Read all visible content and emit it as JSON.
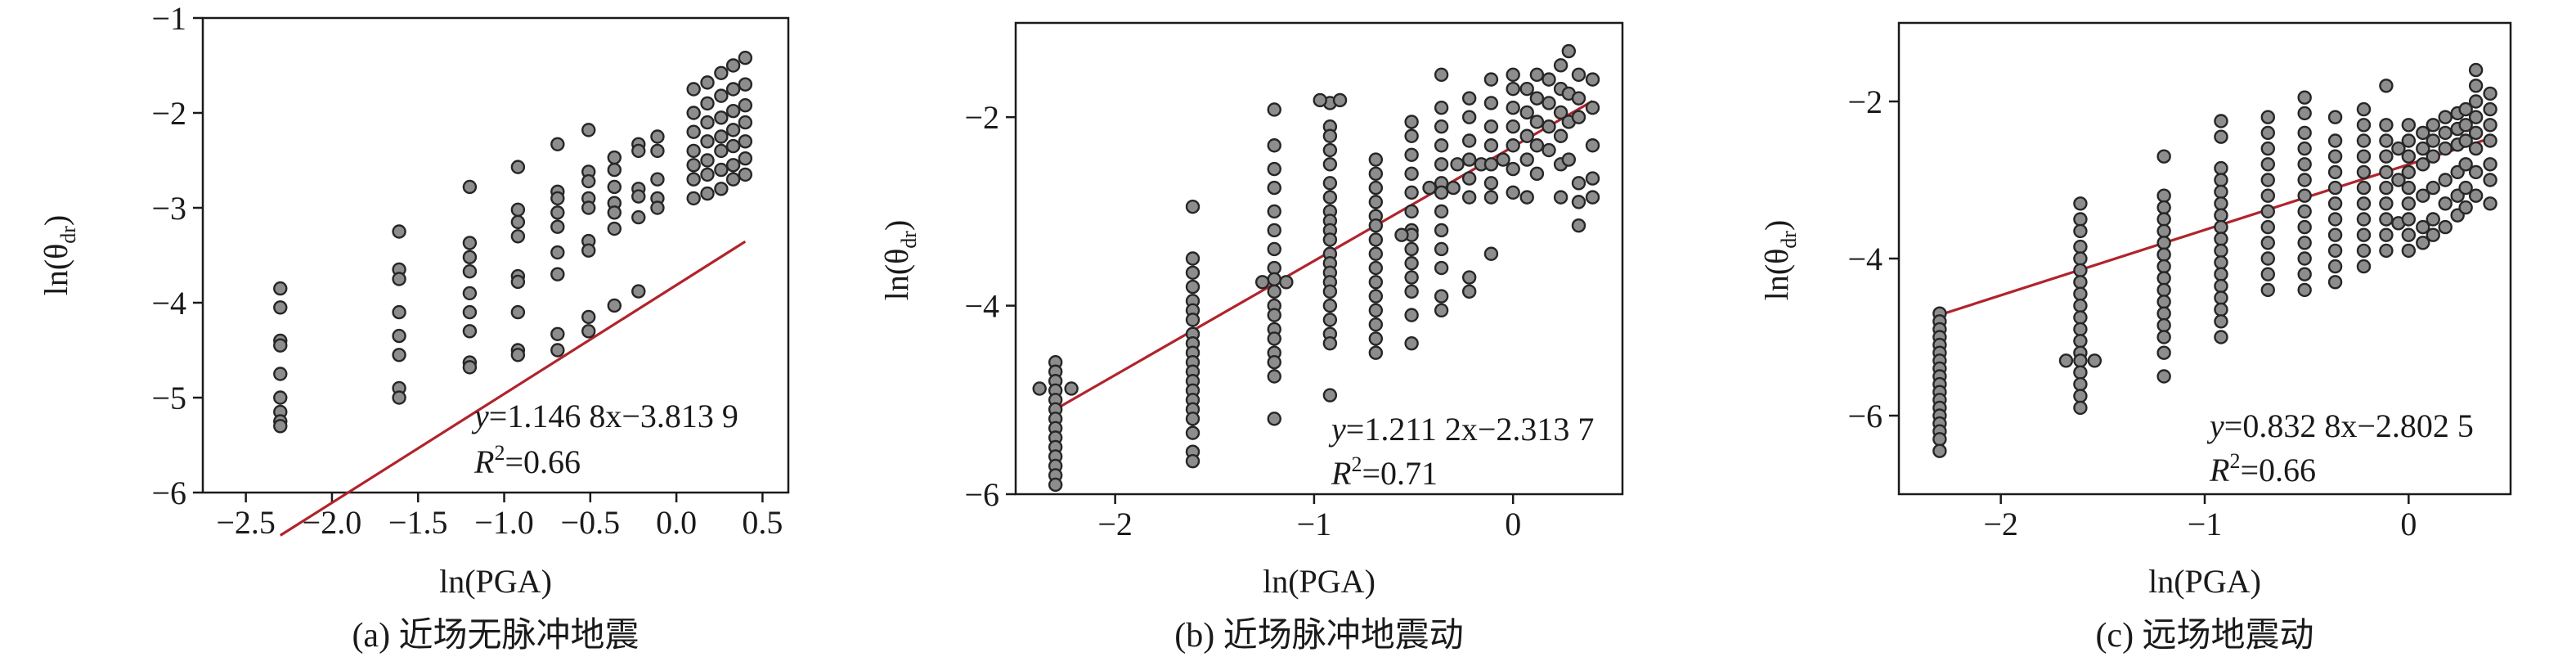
{
  "chart_data": [
    {
      "type": "scatter",
      "caption": "(a) 近场无脉冲地震",
      "xlabel": "ln(PGA)",
      "ylabel_main": "ln(θ",
      "ylabel_sub": "dr",
      "ylabel_close": ")",
      "xlim": [
        -2.75,
        0.65
      ],
      "ylim": [
        -6,
        -1
      ],
      "xticks": [
        -2.5,
        -2.0,
        -1.5,
        -1.0,
        -0.5,
        0.0,
        0.5
      ],
      "xtick_labels": [
        "−2.5",
        "−2.0",
        "−1.5",
        "−1.0",
        "−0.5",
        "0.0",
        "0.5"
      ],
      "yticks": [
        -6,
        -5,
        -4,
        -3,
        -2,
        -1
      ],
      "ytick_labels": [
        "−6",
        "−5",
        "−4",
        "−3",
        "−2",
        "−1"
      ],
      "equation": {
        "y": "y",
        "rest": "=1.146 8x−3.813 9"
      },
      "r2": {
        "r": "R",
        "sup": "2",
        "rest": "=0.66"
      },
      "fit": {
        "slope": 1.1468,
        "intercept": -3.8139,
        "x_range": [
          -2.3,
          0.4
        ]
      },
      "point_groups": [
        {
          "x": -2.3,
          "y": [
            -3.85,
            -4.05,
            -4.4,
            -4.45,
            -4.75,
            -5.0,
            -5.15,
            -5.25,
            -5.3
          ]
        },
        {
          "x": -1.61,
          "y": [
            -3.25,
            -3.65,
            -3.75,
            -4.1,
            -4.35,
            -4.55,
            -4.9,
            -5.0
          ]
        },
        {
          "x": -1.2,
          "y": [
            -2.78,
            -3.37,
            -3.52,
            -3.67,
            -3.9,
            -4.1,
            -4.3,
            -4.63,
            -4.68
          ]
        },
        {
          "x": -0.92,
          "y": [
            -2.57,
            -3.02,
            -3.15,
            -3.3,
            -3.72,
            -3.78,
            -4.1,
            -4.5,
            -4.55
          ]
        },
        {
          "x": -0.69,
          "y": [
            -2.33,
            -2.83,
            -2.9,
            -3.05,
            -3.2,
            -3.47,
            -3.7,
            -4.33,
            -4.5
          ]
        },
        {
          "x": -0.51,
          "y": [
            -2.18,
            -2.62,
            -2.72,
            -2.9,
            -3.0,
            -3.35,
            -3.45,
            -4.15,
            -4.3
          ]
        },
        {
          "x": -0.36,
          "y": [
            -2.47,
            -2.6,
            -2.78,
            -2.95,
            -3.05,
            -3.22,
            -4.03
          ]
        },
        {
          "x": -0.22,
          "y": [
            -2.33,
            -2.4,
            -2.8,
            -2.88,
            -3.1,
            -3.88
          ]
        },
        {
          "x": -0.11,
          "y": [
            -2.25,
            -2.4,
            -2.7,
            -2.9,
            -3.0
          ]
        },
        {
          "x": 0.1,
          "y": [
            -1.75,
            -2.0,
            -2.2,
            -2.4,
            -2.55,
            -2.7,
            -2.9
          ]
        },
        {
          "x": 0.18,
          "y": [
            -1.68,
            -1.9,
            -2.1,
            -2.3,
            -2.5,
            -2.65,
            -2.85
          ]
        },
        {
          "x": 0.26,
          "y": [
            -1.58,
            -1.82,
            -2.05,
            -2.25,
            -2.4,
            -2.6,
            -2.8
          ]
        },
        {
          "x": 0.33,
          "y": [
            -1.5,
            -1.75,
            -1.98,
            -2.18,
            -2.35,
            -2.55,
            -2.7
          ]
        },
        {
          "x": 0.4,
          "y": [
            -1.42,
            -1.7,
            -1.92,
            -2.1,
            -2.3,
            -2.48,
            -2.65
          ]
        }
      ]
    },
    {
      "type": "scatter",
      "caption": "(b) 近场脉冲地震动",
      "xlabel": "ln(PGA)",
      "ylabel_main": "ln(θ",
      "ylabel_sub": "dr",
      "ylabel_close": ")",
      "xlim": [
        -2.5,
        0.55
      ],
      "ylim": [
        -6,
        -1
      ],
      "xticks": [
        -2,
        -1,
        0
      ],
      "xtick_labels": [
        "−2",
        "−1",
        "0"
      ],
      "yticks": [
        -6,
        -4,
        -2
      ],
      "ytick_labels": [
        "−6",
        "−4",
        "−2"
      ],
      "equation": {
        "y": "y",
        "rest": "=1.211 2x−2.313 7"
      },
      "r2": {
        "r": "R",
        "sup": "2",
        "rest": "=0.71"
      },
      "fit": {
        "slope": 1.2112,
        "intercept": -2.3137,
        "x_range": [
          -2.3,
          0.4
        ]
      },
      "point_groups": [
        {
          "x": -2.3,
          "y": [
            -4.6,
            -4.7,
            -4.8,
            -4.9,
            -5.0,
            -5.1,
            -5.2,
            -5.3,
            -5.4,
            -5.5,
            -5.6,
            -5.7,
            -5.8,
            -5.9
          ]
        },
        {
          "x": -2.38,
          "y": [
            -4.88
          ]
        },
        {
          "x": -2.22,
          "y": [
            -4.88
          ]
        },
        {
          "x": -1.61,
          "y": [
            -2.95,
            -3.5,
            -3.65,
            -3.8,
            -3.95,
            -4.05,
            -4.15,
            -4.3,
            -4.4,
            -4.5,
            -4.6,
            -4.7,
            -4.8,
            -4.9,
            -5.0,
            -5.1,
            -5.2,
            -5.35,
            -5.55,
            -5.65
          ]
        },
        {
          "x": -1.2,
          "y": [
            -1.92,
            -2.3,
            -2.55,
            -2.75,
            -3.0,
            -3.2,
            -3.4,
            -3.6,
            -3.72,
            -3.85,
            -4.0,
            -4.1,
            -4.25,
            -4.35,
            -4.5,
            -4.6,
            -4.75,
            -5.2
          ]
        },
        {
          "x": -1.26,
          "y": [
            -3.75
          ]
        },
        {
          "x": -1.14,
          "y": [
            -3.75
          ]
        },
        {
          "x": -0.92,
          "y": [
            -1.85,
            -2.1,
            -2.2,
            -2.35,
            -2.5,
            -2.7,
            -2.85,
            -3.0,
            -3.1,
            -3.2,
            -3.3,
            -3.45,
            -3.55,
            -3.65,
            -3.75,
            -3.85,
            -4.0,
            -4.15,
            -4.3,
            -4.4,
            -4.95
          ]
        },
        {
          "x": -0.97,
          "y": [
            -1.82
          ]
        },
        {
          "x": -0.87,
          "y": [
            -1.82
          ]
        },
        {
          "x": -0.69,
          "y": [
            -2.45,
            -2.6,
            -2.75,
            -2.9,
            -3.05,
            -3.15,
            -3.3,
            -3.45,
            -3.6,
            -3.75,
            -3.9,
            -4.05,
            -4.2,
            -4.35,
            -4.5
          ]
        },
        {
          "x": -0.51,
          "y": [
            -2.05,
            -2.2,
            -2.4,
            -2.6,
            -2.8,
            -3.0,
            -3.2,
            -3.25,
            -3.4,
            -3.55,
            -3.7,
            -3.85,
            -4.1,
            -4.4
          ]
        },
        {
          "x": -0.56,
          "y": [
            -3.25
          ]
        },
        {
          "x": -0.36,
          "y": [
            -1.55,
            -1.9,
            -2.1,
            -2.3,
            -2.5,
            -2.7,
            -2.8,
            -3.0,
            -3.2,
            -3.4,
            -3.6,
            -3.9,
            -4.05
          ]
        },
        {
          "x": -0.42,
          "y": [
            -2.75
          ]
        },
        {
          "x": -0.3,
          "y": [
            -2.75
          ]
        },
        {
          "x": -0.22,
          "y": [
            -1.8,
            -2.0,
            -2.25,
            -2.45,
            -2.65,
            -2.85,
            -3.7,
            -3.85
          ]
        },
        {
          "x": -0.16,
          "y": [
            -2.5
          ]
        },
        {
          "x": -0.28,
          "y": [
            -2.5
          ]
        },
        {
          "x": -0.11,
          "y": [
            -1.6,
            -1.85,
            -2.1,
            -2.3,
            -2.5,
            -2.7,
            -2.85,
            -3.45
          ]
        },
        {
          "x": -0.05,
          "y": [
            -2.45
          ]
        },
        {
          "x": 0.0,
          "y": [
            -1.55,
            -1.7,
            -1.9,
            -2.1,
            -2.3,
            -2.55,
            -2.8
          ]
        },
        {
          "x": 0.07,
          "y": [
            -1.7,
            -1.95,
            -2.2,
            -2.45,
            -2.85
          ]
        },
        {
          "x": 0.12,
          "y": [
            -1.55,
            -1.8,
            -2.05,
            -2.3,
            -2.6
          ]
        },
        {
          "x": 0.18,
          "y": [
            -1.6,
            -1.85,
            -2.1,
            -2.35
          ]
        },
        {
          "x": 0.24,
          "y": [
            -1.45,
            -1.7,
            -1.95,
            -2.2,
            -2.5,
            -2.85
          ]
        },
        {
          "x": 0.28,
          "y": [
            -1.3,
            -1.75,
            -2.05,
            -2.45
          ]
        },
        {
          "x": 0.33,
          "y": [
            -1.55,
            -1.8,
            -2.0,
            -2.7,
            -2.9,
            -3.15
          ]
        },
        {
          "x": 0.4,
          "y": [
            -1.6,
            -1.9,
            -2.3,
            -2.65,
            -2.85
          ]
        }
      ]
    },
    {
      "type": "scatter",
      "caption": "(c) 远场地震动",
      "xlabel": "ln(PGA)",
      "ylabel_main": "ln(θ",
      "ylabel_sub": "dr",
      "ylabel_close": ")",
      "xlim": [
        -2.5,
        0.5
      ],
      "ylim": [
        -7,
        -1
      ],
      "xticks": [
        -2,
        -1,
        0
      ],
      "xtick_labels": [
        "−2",
        "−1",
        "0"
      ],
      "yticks": [
        -6,
        -4,
        -2
      ],
      "ytick_labels": [
        "−6",
        "−4",
        "−2"
      ],
      "equation": {
        "y": "y",
        "rest": "=0.832 8x−2.802 5"
      },
      "r2": {
        "r": "R",
        "sup": "2",
        "rest": "=0.66"
      },
      "fit": {
        "slope": 0.8328,
        "intercept": -2.8025,
        "x_range": [
          -2.3,
          0.4
        ]
      },
      "point_groups": [
        {
          "x": -2.3,
          "y": [
            -4.7,
            -4.8,
            -4.9,
            -5.0,
            -5.1,
            -5.2,
            -5.3,
            -5.4,
            -5.5,
            -5.6,
            -5.7,
            -5.8,
            -5.9,
            -6.0,
            -6.1,
            -6.2,
            -6.3,
            -6.45
          ]
        },
        {
          "x": -1.61,
          "y": [
            -3.3,
            -3.5,
            -3.65,
            -3.85,
            -4.0,
            -4.15,
            -4.3,
            -4.45,
            -4.6,
            -4.75,
            -4.9,
            -5.05,
            -5.2,
            -5.3,
            -5.45,
            -5.6,
            -5.75,
            -5.9
          ]
        },
        {
          "x": -1.68,
          "y": [
            -5.3
          ]
        },
        {
          "x": -1.54,
          "y": [
            -5.3
          ]
        },
        {
          "x": -1.2,
          "y": [
            -2.7,
            -3.2,
            -3.35,
            -3.5,
            -3.65,
            -3.8,
            -3.95,
            -4.1,
            -4.25,
            -4.4,
            -4.55,
            -4.7,
            -4.85,
            -5.0,
            -5.2,
            -5.5
          ]
        },
        {
          "x": -0.92,
          "y": [
            -2.25,
            -2.45,
            -2.85,
            -3.0,
            -3.15,
            -3.3,
            -3.45,
            -3.6,
            -3.75,
            -3.9,
            -4.05,
            -4.2,
            -4.35,
            -4.5,
            -4.65,
            -4.8,
            -5.0
          ]
        },
        {
          "x": -0.69,
          "y": [
            -2.2,
            -2.4,
            -2.6,
            -2.8,
            -3.0,
            -3.2,
            -3.4,
            -3.6,
            -3.8,
            -4.0,
            -4.2,
            -4.4
          ]
        },
        {
          "x": -0.51,
          "y": [
            -1.95,
            -2.15,
            -2.4,
            -2.6,
            -2.8,
            -3.0,
            -3.2,
            -3.4,
            -3.6,
            -3.8,
            -4.0,
            -4.2,
            -4.4
          ]
        },
        {
          "x": -0.36,
          "y": [
            -2.2,
            -2.5,
            -2.7,
            -2.9,
            -3.1,
            -3.3,
            -3.5,
            -3.7,
            -3.9,
            -4.1,
            -4.3
          ]
        },
        {
          "x": -0.22,
          "y": [
            -2.1,
            -2.3,
            -2.5,
            -2.7,
            -2.9,
            -3.1,
            -3.3,
            -3.5,
            -3.7,
            -3.9,
            -4.1
          ]
        },
        {
          "x": -0.11,
          "y": [
            -1.8,
            -2.3,
            -2.5,
            -2.7,
            -2.9,
            -3.1,
            -3.3,
            -3.5,
            -3.7,
            -3.9
          ]
        },
        {
          "x": -0.05,
          "y": [
            -2.6,
            -3.0,
            -3.55
          ]
        },
        {
          "x": 0.0,
          "y": [
            -2.3,
            -2.5,
            -2.7,
            -2.9,
            -3.1,
            -3.3,
            -3.5,
            -3.7,
            -3.9
          ]
        },
        {
          "x": 0.07,
          "y": [
            -2.4,
            -2.6,
            -2.8,
            -3.2,
            -3.6,
            -3.8
          ]
        },
        {
          "x": 0.12,
          "y": [
            -2.3,
            -2.5,
            -2.7,
            -3.1,
            -3.5,
            -3.7
          ]
        },
        {
          "x": 0.18,
          "y": [
            -2.2,
            -2.4,
            -2.6,
            -3.0,
            -3.3,
            -3.6
          ]
        },
        {
          "x": 0.24,
          "y": [
            -2.15,
            -2.35,
            -2.55,
            -2.9,
            -3.2,
            -3.45
          ]
        },
        {
          "x": 0.28,
          "y": [
            -2.1,
            -2.3,
            -2.5,
            -2.8,
            -3.1,
            -3.35
          ]
        },
        {
          "x": 0.33,
          "y": [
            -1.6,
            -1.8,
            -2.0,
            -2.2,
            -2.4,
            -2.6,
            -2.9,
            -3.2
          ]
        },
        {
          "x": 0.4,
          "y": [
            -1.9,
            -2.1,
            -2.3,
            -2.5,
            -2.8,
            -3.0,
            -3.3
          ]
        }
      ]
    }
  ]
}
